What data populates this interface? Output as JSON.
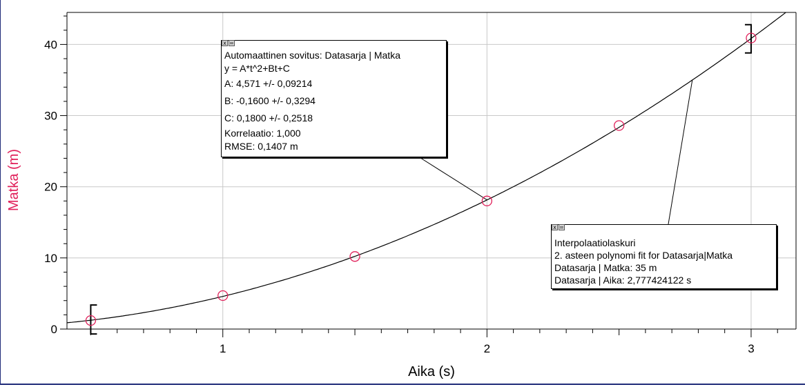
{
  "chart_data": {
    "type": "scatter",
    "title": "",
    "xlabel": "Aika (s)",
    "ylabel": "Matka (m)",
    "xlim": [
      0.41,
      3.17
    ],
    "ylim": [
      0,
      44.5
    ],
    "x_ticks": [
      1,
      2,
      3
    ],
    "y_ticks": [
      0,
      10,
      20,
      30,
      40
    ],
    "grid": true,
    "series": [
      {
        "x": [
          0.5,
          1.0,
          1.5,
          2.0,
          2.5,
          3.0
        ],
        "y": [
          1.2,
          4.7,
          10.2,
          18.0,
          28.6,
          40.9
        ]
      }
    ],
    "fit": {
      "model": "y = A*t^2+Bt+C",
      "A": 4.571,
      "B": -0.16,
      "C": 0.18,
      "range": [
        0.5,
        3.0
      ]
    },
    "interpolation_point": {
      "x": 2.777424122,
      "y": 35
    }
  },
  "annotations": {
    "fit_box": {
      "lines": [
        "Automaattinen sovitus: Datasarja | Matka",
        "y = A*t^2+Bt+C",
        "A: 4,571 +/- 0,09214",
        "B: -0,1600 +/- 0,3294",
        "C: 0,1800 +/- 0,2518",
        "Korrelaatio: 1,000",
        "RMSE: 0,1407 m"
      ]
    },
    "interp_box": {
      "lines": [
        "Interpolaatiolaskuri",
        "2. asteen polynomi fit for Datasarja|Matka",
        "Datasarja | Matka: 35 m",
        "Datasarja | Aika: 2,777424122 s"
      ]
    },
    "controls": {
      "close_glyph": "x",
      "menu_glyph": "="
    }
  },
  "colors": {
    "ylabel": "#e0205a",
    "marker": "#e0205a",
    "curve": "#000000",
    "grid": "#c8c8c8",
    "frame": "#1e2a78"
  }
}
